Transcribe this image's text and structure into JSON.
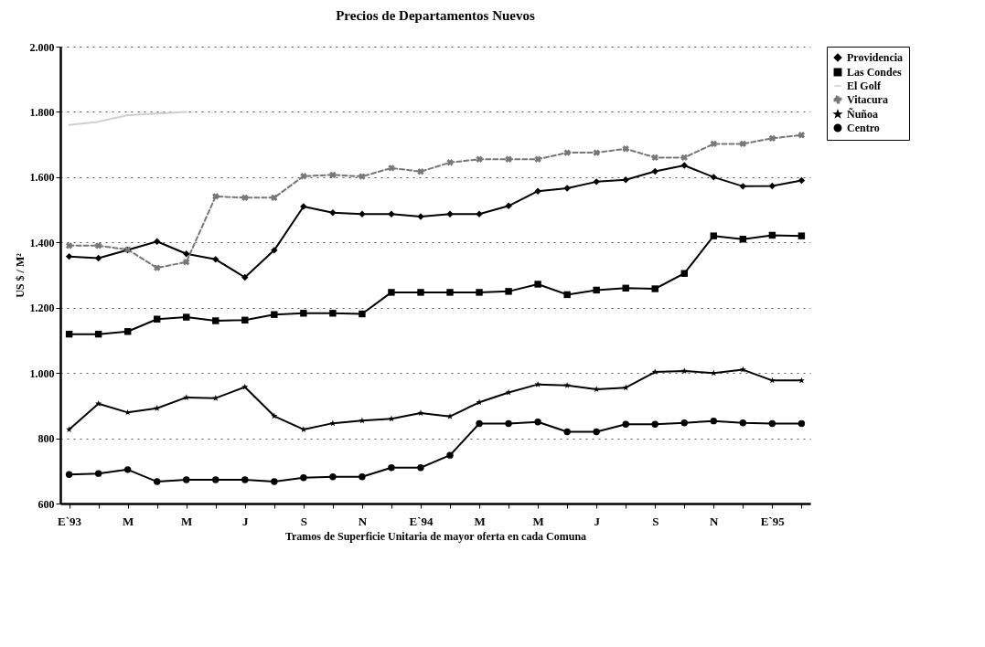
{
  "chart_data": {
    "type": "line",
    "title": "Precios de Departamentos Nuevos",
    "xlabel": "Tramos de Superficie Unitaria de mayor oferta en cada Comuna",
    "ylabel": "US $ / M²",
    "categories": [
      "E`93",
      null,
      "M",
      null,
      "M",
      null,
      "J",
      null,
      "S",
      null,
      "N",
      null,
      "E`94",
      null,
      "M",
      null,
      "M",
      null,
      "J",
      null,
      "S",
      null,
      "N",
      null,
      "E`95",
      null
    ],
    "ylim": [
      600,
      2000
    ],
    "yticks": [
      600,
      800,
      {
        "value": 1000,
        "label": "1.000"
      },
      {
        "value": 1200,
        "label": "1.200"
      },
      {
        "value": 1400,
        "label": "1.400"
      },
      {
        "value": 1600,
        "label": "1.600"
      },
      {
        "value": 1800,
        "label": "1.800"
      },
      {
        "value": 2000,
        "label": "2.000"
      }
    ],
    "grid": "y",
    "legend": "right",
    "series": [
      {
        "name": "Providencia",
        "color": "#000000",
        "marker": "diamond",
        "line_style": "solid",
        "values": [
          1357,
          1352,
          1377,
          1403,
          1365,
          1348,
          1293,
          1376,
          1510,
          1491,
          1487,
          1487,
          1479,
          1487,
          1487,
          1512,
          1557,
          1566,
          1586,
          1592,
          1618,
          1636,
          1600,
          1572,
          1573,
          1590
        ]
      },
      {
        "name": "Las Condes",
        "color": "#000000",
        "marker": "square",
        "line_style": "solid",
        "values": [
          1119,
          1119,
          1127,
          1165,
          1171,
          1160,
          1162,
          1179,
          1183,
          1183,
          1181,
          1247,
          1247,
          1247,
          1247,
          1250,
          1272,
          1240,
          1254,
          1260,
          1258,
          1305,
          1420,
          1410,
          1422,
          1420
        ]
      },
      {
        "name": "El Golf",
        "color": "#cfcfcf",
        "marker": "none",
        "line_style": "solid",
        "values": [
          1760,
          1770,
          1790,
          1795,
          1800,
          null,
          null,
          null,
          null,
          null,
          null,
          null,
          null,
          null,
          null,
          null,
          null,
          null,
          null,
          null,
          null,
          null,
          null,
          null,
          null,
          null
        ]
      },
      {
        "name": "Vitacura",
        "color": "#777777",
        "marker": "cross",
        "line_style": "dashed",
        "values": [
          1390,
          1390,
          1378,
          1322,
          1340,
          1541,
          1537,
          1537,
          1603,
          1607,
          1602,
          1628,
          1617,
          1645,
          1655,
          1655,
          1655,
          1675,
          1675,
          1687,
          1660,
          1660,
          1702,
          1702,
          1719,
          1729
        ]
      },
      {
        "name": "Ñuñoa",
        "color": "#000000",
        "marker": "star",
        "line_style": "solid",
        "values": [
          827,
          906,
          879,
          892,
          925,
          923,
          957,
          868,
          827,
          846,
          854,
          860,
          877,
          867,
          910,
          940,
          965,
          962,
          950,
          955,
          1003,
          1006,
          1000,
          1010,
          977,
          977
        ]
      },
      {
        "name": "Centro",
        "color": "#000000",
        "marker": "circle",
        "line_style": "solid",
        "values": [
          689,
          692,
          704,
          667,
          673,
          673,
          673,
          667,
          679,
          682,
          682,
          710,
          710,
          748,
          845,
          845,
          850,
          820,
          820,
          843,
          843,
          847,
          853,
          847,
          845,
          845
        ]
      }
    ]
  }
}
